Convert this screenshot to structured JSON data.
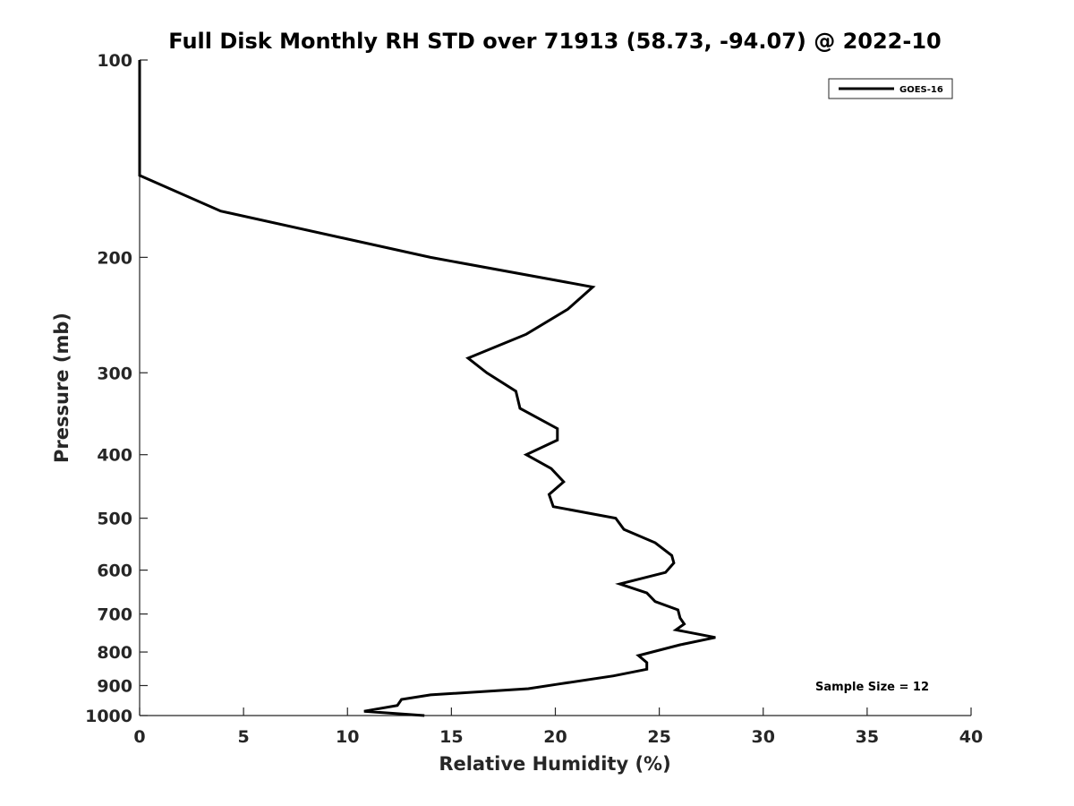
{
  "chart_data": {
    "type": "line",
    "title": "Full Disk Monthly RH STD over 71913 (58.73, -94.07) @ 2022-10",
    "xlabel": "Relative Humidity (%)",
    "ylabel": "Pressure (mb)",
    "xlim": [
      0,
      40
    ],
    "ylim": [
      100,
      1000
    ],
    "y_scale": "log",
    "y_reversed": true,
    "x_ticks": [
      0,
      5,
      10,
      15,
      20,
      25,
      30,
      35,
      40
    ],
    "y_ticks": [
      100,
      200,
      300,
      400,
      500,
      600,
      700,
      800,
      900,
      1000
    ],
    "grid": false,
    "legend_position": "top-right",
    "annotation": "Sample Size = 12",
    "series": [
      {
        "name": "GOES-16",
        "color": "#000000",
        "points": [
          [
            0,
            100
          ],
          [
            0,
            150
          ],
          [
            3.9,
            170
          ],
          [
            14,
            200
          ],
          [
            21.8,
            222
          ],
          [
            20.6,
            240
          ],
          [
            18.6,
            262
          ],
          [
            15.8,
            285
          ],
          [
            16.7,
            300
          ],
          [
            18.1,
            320
          ],
          [
            18.3,
            340
          ],
          [
            20.1,
            365
          ],
          [
            20.1,
            380
          ],
          [
            18.6,
            400
          ],
          [
            19.8,
            420
          ],
          [
            20.4,
            440
          ],
          [
            19.7,
            460
          ],
          [
            19.9,
            480
          ],
          [
            22.9,
            500
          ],
          [
            23.3,
            520
          ],
          [
            24.8,
            545
          ],
          [
            25.6,
            570
          ],
          [
            25.7,
            585
          ],
          [
            25.3,
            605
          ],
          [
            23.1,
            630
          ],
          [
            24.4,
            650
          ],
          [
            24.8,
            670
          ],
          [
            25.9,
            690
          ],
          [
            26.0,
            710
          ],
          [
            26.2,
            725
          ],
          [
            25.8,
            740
          ],
          [
            27.7,
            760
          ],
          [
            26.0,
            780
          ],
          [
            24.0,
            810
          ],
          [
            24.4,
            830
          ],
          [
            24.4,
            850
          ],
          [
            22.8,
            870
          ],
          [
            20.2,
            895
          ],
          [
            18.7,
            910
          ],
          [
            14.0,
            930
          ],
          [
            12.6,
            945
          ],
          [
            12.4,
            965
          ],
          [
            10.8,
            985
          ],
          [
            13.7,
            1000
          ]
        ]
      }
    ]
  }
}
